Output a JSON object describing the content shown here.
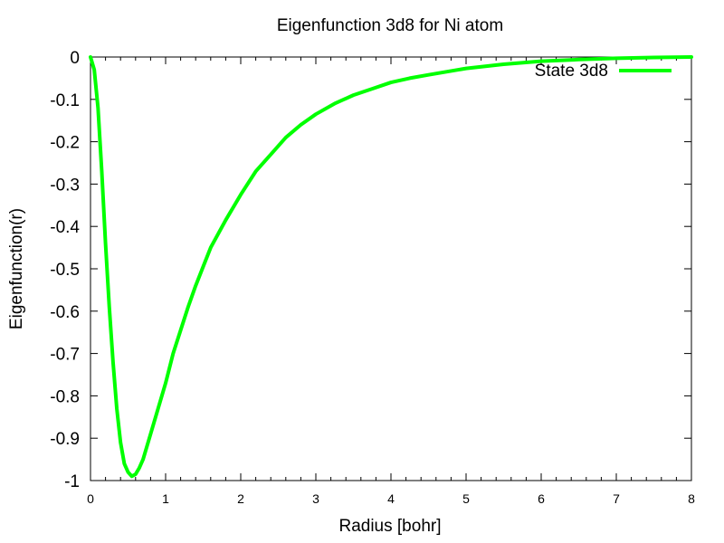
{
  "chart_data": {
    "type": "line",
    "title": "Eigenfunction 3d8 for Ni atom",
    "xlabel": "Radius [bohr]",
    "ylabel": "Eigenfunction(r)",
    "xlim": [
      0,
      8
    ],
    "ylim": [
      -1,
      0
    ],
    "xticks": [
      0,
      1,
      2,
      3,
      4,
      5,
      6,
      7,
      8
    ],
    "yticks": [
      0,
      -0.1,
      -0.2,
      -0.3,
      -0.4,
      -0.5,
      -0.6,
      -0.7,
      -0.8,
      -0.9,
      -1
    ],
    "xtick_labels": [
      "0",
      "1",
      "2",
      "3",
      "4",
      "5",
      "6",
      "7",
      "8"
    ],
    "ytick_labels": [
      "0",
      "-0.1",
      "-0.2",
      "-0.3",
      "-0.4",
      "-0.5",
      "-0.6",
      "-0.7",
      "-0.8",
      "-0.9",
      "-1"
    ],
    "grid": false,
    "legend_position": "top-right",
    "series": [
      {
        "name": "State 3d8",
        "color": "#00ff00",
        "x": [
          0,
          0.05,
          0.1,
          0.15,
          0.2,
          0.25,
          0.3,
          0.35,
          0.4,
          0.45,
          0.5,
          0.55,
          0.6,
          0.65,
          0.7,
          0.8,
          0.9,
          1.0,
          1.1,
          1.2,
          1.3,
          1.4,
          1.5,
          1.6,
          1.8,
          2.0,
          2.2,
          2.4,
          2.6,
          2.8,
          3.0,
          3.25,
          3.5,
          3.75,
          4.0,
          4.25,
          4.5,
          5.0,
          5.5,
          6.0,
          6.5,
          7.0,
          7.5,
          8.0
        ],
        "values": [
          0,
          -0.03,
          -0.12,
          -0.27,
          -0.44,
          -0.59,
          -0.72,
          -0.83,
          -0.91,
          -0.96,
          -0.98,
          -0.99,
          -0.985,
          -0.97,
          -0.95,
          -0.89,
          -0.83,
          -0.77,
          -0.7,
          -0.645,
          -0.59,
          -0.54,
          -0.495,
          -0.45,
          -0.385,
          -0.325,
          -0.27,
          -0.23,
          -0.19,
          -0.16,
          -0.135,
          -0.11,
          -0.09,
          -0.075,
          -0.06,
          -0.05,
          -0.042,
          -0.027,
          -0.017,
          -0.01,
          -0.006,
          -0.003,
          -0.001,
          0
        ]
      }
    ]
  }
}
